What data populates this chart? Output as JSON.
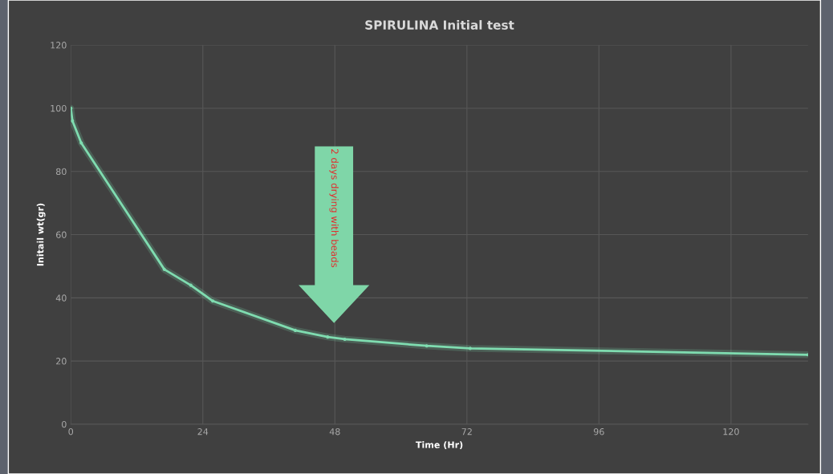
{
  "chart_data": {
    "type": "line",
    "title": "SPIRULINA Initial test",
    "xlabel": "Time (Hr)",
    "ylabel": "Initail wt(gr)",
    "x": [
      0,
      0.3,
      1.9,
      17,
      21.8,
      25.8,
      40.8,
      46.7,
      49.8,
      64.7,
      72.6,
      134
    ],
    "series": [
      {
        "color": "#7fdcb0",
        "values": [
          100,
          96,
          89,
          49,
          44,
          39,
          29.7,
          27.6,
          26.9,
          24.8,
          24,
          22
        ]
      }
    ],
    "xlim": [
      0,
      134
    ],
    "xticks": [
      0,
      24,
      48,
      72,
      96,
      120
    ],
    "ylim": [
      0,
      120
    ],
    "yticks": [
      0,
      20,
      40,
      60,
      80,
      100,
      120
    ],
    "grid": true,
    "marker": "circle",
    "line_style": "solid",
    "annotations": [
      "2 days drying with beads"
    ]
  }
}
